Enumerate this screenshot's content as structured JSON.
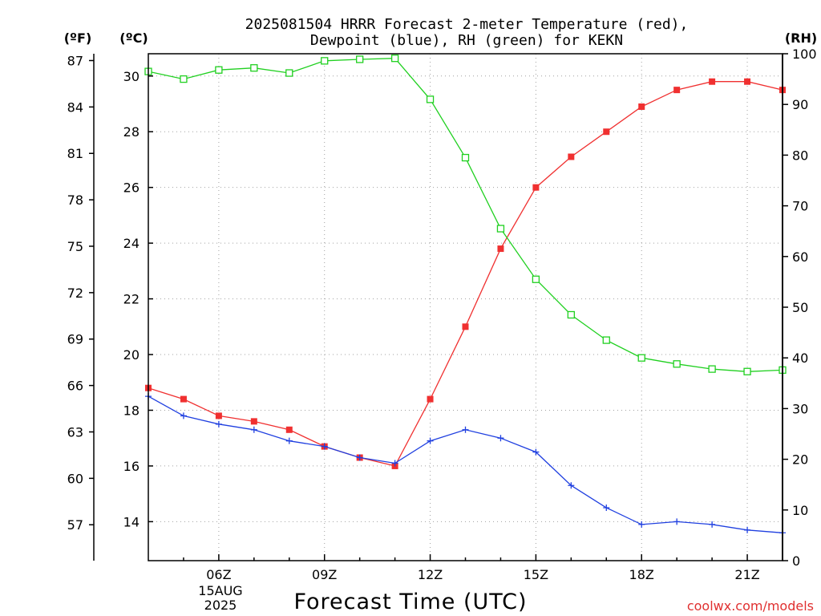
{
  "title": {
    "line1": "2025081504 HRRR Forecast 2-meter Temperature (red),",
    "line2": "Dewpoint (blue), RH (green) for KEKN"
  },
  "labels": {
    "fahrenheit_unit": "(ºF)",
    "celsius_unit": "(ºC)",
    "rh_unit": "(RH)",
    "xlabel": "Forecast Time (UTC)",
    "date_line1": "15AUG",
    "date_line2": "2025",
    "credit": "coolwx.com/models"
  },
  "colors": {
    "temperature": "#f03030",
    "dewpoint": "#2040e0",
    "rh": "#20d020",
    "credit": "#e03030",
    "axis": "#000000",
    "grid": "#a0a0a0"
  },
  "chart_data": {
    "type": "line",
    "x_unit": "forecast hour (UTC)",
    "x": [
      4,
      5,
      6,
      7,
      8,
      9,
      10,
      11,
      12,
      13,
      14,
      15,
      16,
      17,
      18,
      19,
      20,
      21,
      22
    ],
    "x_ticks": [
      {
        "value": 6,
        "label": "06Z"
      },
      {
        "value": 9,
        "label": "09Z"
      },
      {
        "value": 12,
        "label": "12Z"
      },
      {
        "value": 15,
        "label": "15Z"
      },
      {
        "value": 18,
        "label": "18Z"
      },
      {
        "value": 21,
        "label": "21Z"
      }
    ],
    "xlim": [
      4,
      22
    ],
    "ylim_celsius": [
      12.6,
      30.8
    ],
    "ylim_rh": [
      0,
      100
    ],
    "celsius_ticks": [
      14,
      16,
      18,
      20,
      22,
      24,
      26,
      28,
      30
    ],
    "fahrenheit_ticks": [
      57,
      60,
      63,
      66,
      69,
      72,
      75,
      78,
      81,
      84,
      87
    ],
    "rh_ticks": [
      0,
      10,
      20,
      30,
      40,
      50,
      60,
      70,
      80,
      90,
      100
    ],
    "grid": true,
    "series": [
      {
        "name": "Temperature",
        "axis": "celsius",
        "marker": "filled-square",
        "values": [
          18.8,
          18.4,
          17.8,
          17.6,
          17.3,
          16.7,
          16.3,
          16.0,
          18.4,
          21.0,
          23.8,
          26.0,
          27.1,
          28.0,
          28.9,
          29.5,
          29.8,
          29.8,
          29.5
        ]
      },
      {
        "name": "Dewpoint",
        "axis": "celsius",
        "marker": "plus",
        "values": [
          18.5,
          17.8,
          17.5,
          17.3,
          16.9,
          16.7,
          16.3,
          16.1,
          16.9,
          17.3,
          17.0,
          16.5,
          15.3,
          14.5,
          13.9,
          14.0,
          13.9,
          13.7,
          13.6
        ]
      },
      {
        "name": "RH",
        "axis": "rh",
        "marker": "open-square",
        "values": [
          96.5,
          95.0,
          96.8,
          97.2,
          96.2,
          98.6,
          98.9,
          99.1,
          91.0,
          79.5,
          65.5,
          55.5,
          48.5,
          43.5,
          40.0,
          38.8,
          37.8,
          37.3,
          37.6
        ]
      }
    ]
  }
}
